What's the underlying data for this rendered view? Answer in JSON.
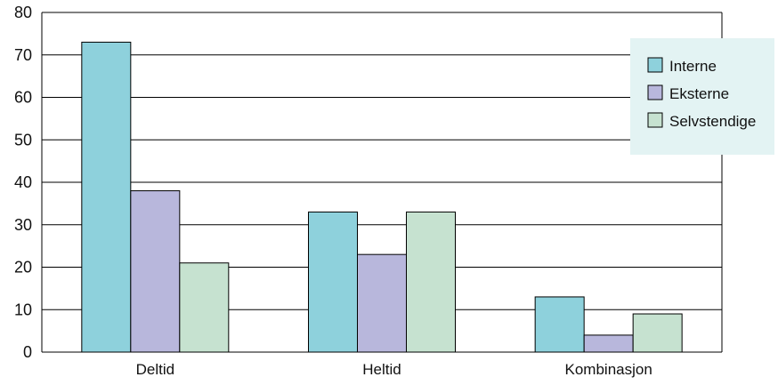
{
  "chart_data": {
    "type": "bar",
    "categories": [
      "Deltid",
      "Heltid",
      "Kombinasjon"
    ],
    "series": [
      {
        "name": "Interne",
        "color": "#8ed1dc",
        "values": [
          73,
          33,
          13
        ]
      },
      {
        "name": "Eksterne",
        "color": "#b8b7dc",
        "values": [
          38,
          23,
          4
        ]
      },
      {
        "name": "Selvstendige",
        "color": "#c6e2d0",
        "values": [
          21,
          33,
          9
        ]
      }
    ],
    "ylim": [
      0,
      80
    ],
    "yticks": [
      0,
      10,
      20,
      30,
      40,
      50,
      60,
      70,
      80
    ],
    "title": "",
    "xlabel": "",
    "ylabel": "",
    "grid": true,
    "legend_position": "right",
    "legend_background": "#e3f3f3"
  }
}
